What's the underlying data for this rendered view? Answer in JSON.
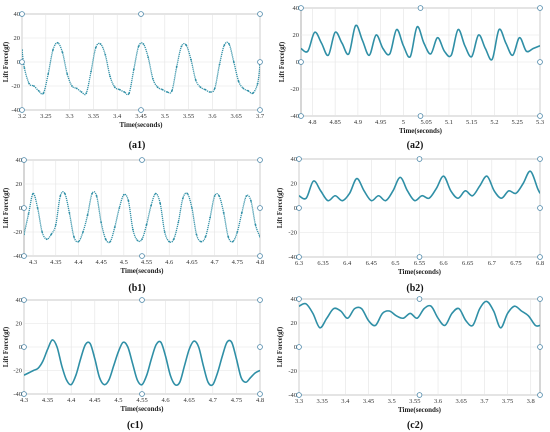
{
  "chart_data": [
    {
      "panel": "(a1)",
      "type": "line",
      "xlabel": "Time(seconds)",
      "ylabel": "Lift Force(gf)",
      "xlim": [
        3.2,
        3.7
      ],
      "ylim": [
        -40,
        40
      ],
      "xticks": [
        3.2,
        3.25,
        3.3,
        3.35,
        3.4,
        3.45,
        3.5,
        3.55,
        3.6,
        3.65,
        3.7
      ],
      "xtick_labels": [
        "3.2",
        "3.25",
        "3.3",
        "3.35",
        "3.4",
        "3.45",
        "3.5",
        "3.55",
        "3.6",
        "3.65",
        "3.7"
      ],
      "yticks": [
        -40,
        -20,
        0,
        20,
        40
      ],
      "ytick_labels": [
        "-40",
        "-20",
        "0",
        "20",
        "40"
      ],
      "grid": true,
      "color": "#2f8fa6",
      "style": "markers",
      "series": [
        {
          "x": [
            3.2,
            3.205,
            3.215,
            3.225,
            3.235,
            3.245,
            3.255,
            3.265,
            3.275,
            3.285,
            3.295,
            3.305,
            3.315,
            3.325,
            3.335,
            3.345,
            3.355,
            3.365,
            3.375,
            3.385,
            3.395,
            3.405,
            3.415,
            3.425,
            3.435,
            3.445,
            3.455,
            3.465,
            3.475,
            3.485,
            3.495,
            3.505,
            3.515,
            3.525,
            3.535,
            3.545,
            3.555,
            3.565,
            3.575,
            3.585,
            3.595,
            3.605,
            3.615,
            3.625,
            3.635,
            3.645,
            3.655,
            3.665,
            3.675,
            3.685,
            3.695,
            3.7
          ],
          "y": [
            10,
            -5,
            -18,
            -20,
            -24,
            -26,
            -10,
            10,
            16,
            8,
            -10,
            -20,
            -22,
            -25,
            -26,
            -8,
            12,
            15,
            6,
            -12,
            -21,
            -23,
            -25,
            -26,
            -6,
            13,
            15,
            4,
            -14,
            -21,
            -23,
            -25,
            -24,
            -4,
            13,
            14,
            2,
            -15,
            -21,
            -23,
            -25,
            -22,
            -2,
            14,
            15,
            0,
            -16,
            -22,
            -24,
            -26,
            -18,
            -2
          ]
        }
      ]
    },
    {
      "panel": "(a2)",
      "type": "line",
      "xlabel": "Time(seconds)",
      "ylabel": "Lift Force(gf)",
      "xlim": [
        4.775,
        5.3
      ],
      "ylim": [
        -40,
        40
      ],
      "xticks": [
        4.8,
        4.85,
        4.9,
        4.95,
        5.0,
        5.05,
        5.1,
        5.15,
        5.2,
        5.25,
        5.3
      ],
      "xtick_labels": [
        "4.8",
        "4.85",
        "4.9",
        "4.95",
        "5",
        "5.05",
        "5.1",
        "5.15",
        "5.2",
        "5.25",
        "5.3"
      ],
      "yticks": [
        -40,
        -20,
        0,
        20,
        40
      ],
      "ytick_labels": [
        "-40",
        "-20",
        "0",
        "20",
        "40"
      ],
      "grid": true,
      "color": "#2f8fa6",
      "style": "line",
      "series": [
        {
          "x": [
            4.775,
            4.79,
            4.805,
            4.82,
            4.835,
            4.85,
            4.865,
            4.88,
            4.895,
            4.91,
            4.925,
            4.94,
            4.955,
            4.97,
            4.985,
            5.0,
            5.015,
            5.03,
            5.045,
            5.06,
            5.075,
            5.09,
            5.105,
            5.12,
            5.135,
            5.15,
            5.165,
            5.18,
            5.195,
            5.21,
            5.225,
            5.24,
            5.255,
            5.27,
            5.285,
            5.3
          ],
          "y": [
            10,
            8,
            22,
            14,
            5,
            22,
            14,
            6,
            27,
            16,
            5,
            20,
            10,
            6,
            24,
            12,
            4,
            26,
            14,
            6,
            18,
            8,
            5,
            24,
            12,
            4,
            20,
            10,
            2,
            24,
            14,
            5,
            18,
            8,
            10,
            12
          ]
        }
      ]
    },
    {
      "panel": "(b1)",
      "type": "line",
      "xlabel": "Time(seconds)",
      "ylabel": "Lift Force(gf)",
      "xlim": [
        4.28,
        4.8
      ],
      "ylim": [
        -40,
        40
      ],
      "xticks": [
        4.3,
        4.35,
        4.4,
        4.45,
        4.5,
        4.55,
        4.6,
        4.65,
        4.7,
        4.75,
        4.8
      ],
      "xtick_labels": [
        "4.3",
        "4.35",
        "4.4",
        "4.45",
        "4.5",
        "4.55",
        "4.6",
        "4.65",
        "4.7",
        "4.75",
        "4.8"
      ],
      "yticks": [
        -40,
        -20,
        0,
        20,
        40
      ],
      "ytick_labels": [
        "-40",
        "-20",
        "0",
        "20",
        "40"
      ],
      "grid": true,
      "color": "#2f8fa6",
      "style": "markers",
      "series": [
        {
          "x": [
            4.28,
            4.29,
            4.3,
            4.31,
            4.32,
            4.33,
            4.34,
            4.35,
            4.36,
            4.37,
            4.38,
            4.39,
            4.4,
            4.41,
            4.42,
            4.43,
            4.44,
            4.45,
            4.46,
            4.47,
            4.48,
            4.49,
            4.5,
            4.51,
            4.52,
            4.53,
            4.54,
            4.55,
            4.56,
            4.57,
            4.58,
            4.59,
            4.6,
            4.61,
            4.62,
            4.63,
            4.64,
            4.65,
            4.66,
            4.67,
            4.68,
            4.69,
            4.7,
            4.71,
            4.72,
            4.73,
            4.74,
            4.75,
            4.76,
            4.77,
            4.78,
            4.79,
            4.8
          ],
          "y": [
            -22,
            -5,
            12,
            0,
            -20,
            -26,
            -22,
            -14,
            10,
            12,
            -4,
            -24,
            -28,
            -20,
            -6,
            12,
            10,
            -12,
            -26,
            -28,
            -16,
            0,
            11,
            6,
            -18,
            -27,
            -26,
            -14,
            2,
            12,
            4,
            -20,
            -28,
            -26,
            -12,
            8,
            12,
            0,
            -22,
            -28,
            -24,
            -8,
            10,
            10,
            -4,
            -24,
            -28,
            -20,
            -4,
            10,
            6,
            -14,
            -24
          ]
        }
      ]
    },
    {
      "panel": "(b2)",
      "type": "line",
      "xlabel": "Time(seconds)",
      "ylabel": "Lift Force(gf)",
      "xlim": [
        6.3,
        6.8
      ],
      "ylim": [
        -40,
        40
      ],
      "xticks": [
        6.3,
        6.35,
        6.4,
        6.45,
        6.5,
        6.55,
        6.6,
        6.65,
        6.7,
        6.75,
        6.8
      ],
      "xtick_labels": [
        "6.3",
        "6.35",
        "6.4",
        "6.45",
        "6.5",
        "6.55",
        "6.6",
        "6.65",
        "6.7",
        "6.75",
        "6.8"
      ],
      "yticks": [
        -40,
        -20,
        0,
        20,
        40
      ],
      "ytick_labels": [
        "-40",
        "-20",
        "0",
        "20",
        "40"
      ],
      "grid": true,
      "color": "#2f8fa6",
      "style": "line",
      "series": [
        {
          "x": [
            6.3,
            6.315,
            6.33,
            6.345,
            6.36,
            6.375,
            6.39,
            6.405,
            6.42,
            6.435,
            6.45,
            6.465,
            6.48,
            6.495,
            6.51,
            6.525,
            6.54,
            6.555,
            6.57,
            6.585,
            6.6,
            6.615,
            6.63,
            6.645,
            6.66,
            6.675,
            6.69,
            6.705,
            6.72,
            6.735,
            6.75,
            6.765,
            6.78,
            6.795,
            6.8
          ],
          "y": [
            10,
            8,
            22,
            14,
            6,
            10,
            6,
            12,
            24,
            14,
            6,
            10,
            6,
            14,
            25,
            14,
            6,
            10,
            8,
            16,
            26,
            14,
            8,
            14,
            10,
            18,
            26,
            14,
            8,
            14,
            12,
            20,
            30,
            16,
            12
          ]
        }
      ]
    },
    {
      "panel": "(c1)",
      "type": "line",
      "xlabel": "Time(seconds)",
      "ylabel": "Lift Force(gf)",
      "xlim": [
        4.3,
        4.8
      ],
      "ylim": [
        -40,
        40
      ],
      "xticks": [
        4.3,
        4.35,
        4.4,
        4.45,
        4.5,
        4.55,
        4.6,
        4.65,
        4.7,
        4.75,
        4.8
      ],
      "xtick_labels": [
        "4.3",
        "4.35",
        "4.4",
        "4.45",
        "4.5",
        "4.55",
        "4.6",
        "4.65",
        "4.7",
        "4.75",
        "4.8"
      ],
      "yticks": [
        -40,
        -20,
        0,
        20,
        40
      ],
      "ytick_labels": [
        "-40",
        "-20",
        "0",
        "20",
        "40"
      ],
      "grid": true,
      "color": "#2f8fa6",
      "style": "line",
      "series": [
        {
          "x": [
            4.3,
            4.31,
            4.32,
            4.33,
            4.34,
            4.35,
            4.36,
            4.37,
            4.38,
            4.39,
            4.4,
            4.41,
            4.42,
            4.43,
            4.44,
            4.45,
            4.46,
            4.47,
            4.48,
            4.49,
            4.5,
            4.51,
            4.52,
            4.53,
            4.54,
            4.55,
            4.56,
            4.57,
            4.58,
            4.59,
            4.6,
            4.61,
            4.62,
            4.63,
            4.64,
            4.65,
            4.66,
            4.67,
            4.68,
            4.69,
            4.7,
            4.71,
            4.72,
            4.73,
            4.74,
            4.75,
            4.76,
            4.77,
            4.78,
            4.79,
            4.8
          ],
          "y": [
            -24,
            -22,
            -20,
            -18,
            -12,
            -2,
            6,
            0,
            -16,
            -28,
            -32,
            -24,
            -10,
            2,
            3,
            -10,
            -26,
            -32,
            -28,
            -16,
            -4,
            4,
            0,
            -14,
            -28,
            -32,
            -24,
            -10,
            2,
            4,
            -8,
            -24,
            -32,
            -30,
            -16,
            -2,
            5,
            0,
            -16,
            -30,
            -32,
            -22,
            -8,
            4,
            4,
            -10,
            -26,
            -30,
            -26,
            -22,
            -20
          ]
        }
      ]
    },
    {
      "panel": "(c2)",
      "type": "line",
      "xlabel": "Time(seconds)",
      "ylabel": "Lift Force(gf)",
      "xlim": [
        3.3,
        3.82
      ],
      "ylim": [
        -40,
        40
      ],
      "xticks": [
        3.3,
        3.35,
        3.4,
        3.45,
        3.5,
        3.55,
        3.6,
        3.65,
        3.7,
        3.75,
        3.8
      ],
      "xtick_labels": [
        "3.3",
        "3.35",
        "3.4",
        "3.45",
        "3.5",
        "3.55",
        "3.6",
        "3.65",
        "3.7",
        "3.75",
        "3.8"
      ],
      "yticks": [
        -40,
        -20,
        0,
        20,
        40
      ],
      "ytick_labels": [
        "-40",
        "-20",
        "0",
        "20",
        "40"
      ],
      "grid": true,
      "color": "#2f8fa6",
      "style": "line",
      "series": [
        {
          "x": [
            3.3,
            3.315,
            3.33,
            3.345,
            3.36,
            3.375,
            3.39,
            3.405,
            3.42,
            3.435,
            3.45,
            3.465,
            3.48,
            3.495,
            3.51,
            3.525,
            3.54,
            3.555,
            3.57,
            3.585,
            3.6,
            3.615,
            3.63,
            3.645,
            3.66,
            3.675,
            3.69,
            3.705,
            3.72,
            3.735,
            3.75,
            3.765,
            3.78,
            3.795,
            3.81,
            3.82
          ],
          "y": [
            34,
            36,
            28,
            16,
            24,
            32,
            30,
            24,
            32,
            32,
            22,
            18,
            28,
            30,
            26,
            24,
            28,
            24,
            32,
            34,
            24,
            18,
            28,
            32,
            22,
            18,
            32,
            38,
            30,
            16,
            28,
            34,
            30,
            26,
            18,
            18
          ]
        }
      ]
    }
  ]
}
